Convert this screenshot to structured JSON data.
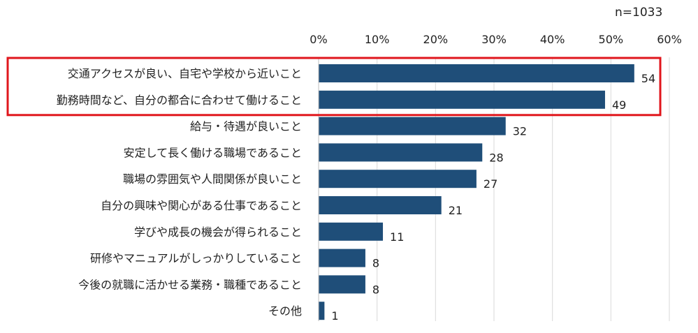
{
  "header": {
    "sample_size": "n=1033"
  },
  "chart_data": {
    "type": "bar",
    "orientation": "horizontal",
    "title": "",
    "xlabel": "",
    "ylabel": "",
    "xlim": [
      0,
      60
    ],
    "tick_labels": [
      "0%",
      "10%",
      "20%",
      "30%",
      "40%",
      "50%",
      "60%"
    ],
    "grid": true,
    "categories": [
      "交通アクセスが良い、自宅や学校から近いこと",
      "勤務時間など、自分の都合に合わせて働けること",
      "給与・待遇が良いこと",
      "安定して長く働ける職場であること",
      "職場の雰囲気や人間関係が良いこと",
      "自分の興味や関心がある仕事であること",
      "学びや成長の機会が得られること",
      "研修やマニュアルがしっかりしていること",
      "今後の就職に活かせる業務・職種であること",
      "その他"
    ],
    "values": [
      54,
      49,
      32,
      28,
      27,
      21,
      11,
      8,
      8,
      1
    ],
    "highlighted_categories": [
      0,
      1
    ],
    "colors": {
      "bar": "#1f4e79",
      "highlight": "#e0161c",
      "grid": "#d9d9d9"
    }
  }
}
